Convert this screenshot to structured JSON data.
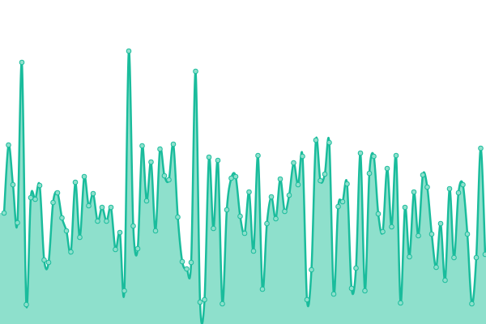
{
  "chart_data": {
    "type": "area",
    "color": "#1abc9c",
    "fill": "#8ee0cc",
    "ylim": [
      0,
      400
    ],
    "values": [
      137,
      221,
      172,
      125,
      323,
      24,
      156,
      154,
      171,
      79,
      76,
      150,
      162,
      131,
      115,
      89,
      175,
      107,
      182,
      146,
      161,
      127,
      144,
      127,
      144,
      92,
      113,
      41,
      337,
      121,
      93,
      220,
      152,
      200,
      115,
      216,
      183,
      178,
      222,
      132,
      77,
      68,
      76,
      312,
      27,
      30,
      206,
      118,
      202,
      25,
      141,
      180,
      182,
      133,
      112,
      163,
      90,
      208,
      43,
      124,
      157,
      130,
      179,
      139,
      159,
      199,
      172,
      207,
      30,
      67,
      227,
      177,
      185,
      224,
      37,
      145,
      151,
      173,
      44,
      69,
      211,
      41,
      186,
      207,
      136,
      114,
      192,
      120,
      208,
      26,
      144,
      83,
      163,
      109,
      184,
      169,
      111,
      70,
      124,
      54,
      167,
      82,
      162,
      172,
      111,
      25,
      82,
      217,
      86
    ]
  }
}
